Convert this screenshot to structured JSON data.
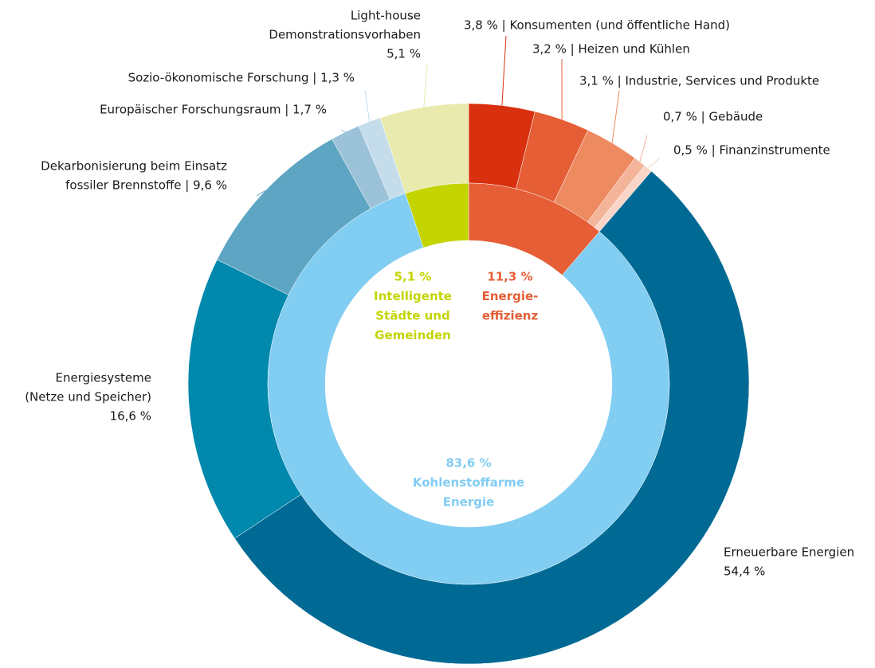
{
  "chart_data": {
    "type": "nested_donut",
    "inner": {
      "labels": [
        [
          "11,3 %",
          "Energie-",
          "effizienz"
        ],
        [
          "83,6 %",
          "Kohlenstoffarme",
          "Energie"
        ],
        [
          "5,1 %",
          "Intelligente",
          "Städte und",
          "Gemeinden"
        ]
      ],
      "values": [
        11.3,
        83.6,
        5.1
      ],
      "colors": [
        "#e55e35",
        "#82cdf2",
        "#c4d400"
      ]
    },
    "outer": {
      "labels": [
        [
          "3,8 % | Konsumenten (und öffentliche Hand)"
        ],
        [
          "3,2 % | Heizen und Kühlen"
        ],
        [
          "3,1 % | Industrie, Services und Produkte"
        ],
        [
          "0,7 % | Gebäude"
        ],
        [
          "0,5 % | Finanzinstrumente"
        ],
        [
          "Erneuerbare Energien",
          "54,4 %"
        ],
        [
          "Energiesysteme",
          "(Netze und Speicher)",
          "16,6 %"
        ],
        [
          "Dekarbonisierung beim Einsatz",
          "fossiler Brennstoffe | 9,6 %"
        ],
        [
          "Europäischer Forschungsraum | 1,7 %"
        ],
        [
          "Sozio-ökonomische Forschung | 1,3 %"
        ],
        [
          "Light-house",
          "Demonstrationsvorhaben",
          "5,1 %"
        ]
      ],
      "values": [
        3.8,
        3.2,
        3.1,
        0.7,
        0.5,
        54.4,
        16.6,
        9.6,
        1.7,
        1.3,
        5.1
      ],
      "colors": [
        "#d9300f",
        "#e55e35",
        "#ee8a60",
        "#f4b49a",
        "#f8d5c7",
        "#006a94",
        "#0088ad",
        "#5ea5c4",
        "#9bc2d8",
        "#c5dceb",
        "#e8eaae"
      ]
    }
  }
}
